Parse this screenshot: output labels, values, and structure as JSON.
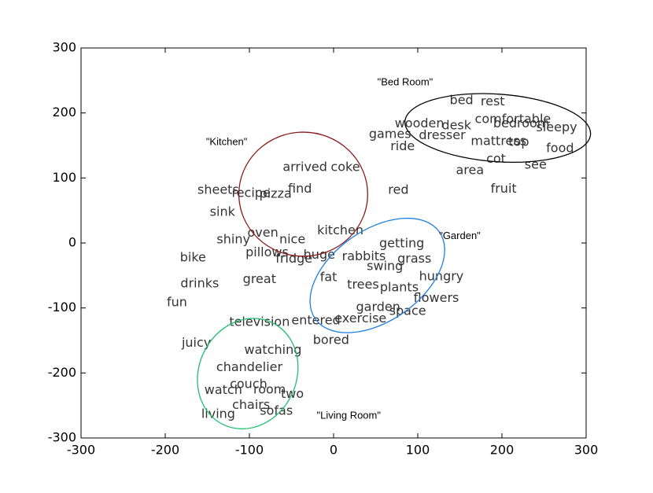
{
  "chart_data": {
    "type": "scatter",
    "labels": [
      "bed",
      "rest",
      "comfortable",
      "bedroom",
      "sleepy",
      "wooden",
      "desk",
      "games",
      "dresser",
      "mattress",
      "top",
      "food",
      "ride",
      "cot",
      "see",
      "area",
      "fruit",
      "red",
      "arrived",
      "coke",
      "find",
      "sheets",
      "recipe",
      "pizza",
      "sink",
      "oven",
      "shiny",
      "nice",
      "kitchen",
      "getting",
      "pillows",
      "huge",
      "rabbits",
      "grass",
      "bike",
      "fridge",
      "swing",
      "hungry",
      "fat",
      "great",
      "drinks",
      "trees",
      "plants",
      "flowers",
      "fun",
      "garden",
      "space",
      "exercise",
      "entered",
      "television",
      "juicy",
      "bored",
      "watching",
      "chandelier",
      "couch",
      "watch",
      "room",
      "two",
      "chairs",
      "sofas",
      "living"
    ],
    "x": [
      152,
      189,
      213,
      223,
      265,
      102,
      146,
      67,
      129,
      196,
      220,
      269,
      82,
      193,
      240,
      162,
      202,
      77,
      -34,
      14,
      -40,
      -137,
      -98,
      -69,
      -132,
      -84,
      -119,
      -49,
      8,
      81,
      -79,
      -17,
      36,
      96,
      -167,
      -47,
      61,
      128,
      -6,
      -88,
      -159,
      35,
      78,
      122,
      -186,
      53,
      88,
      32,
      -21,
      -88,
      -163,
      -3,
      -72,
      -100,
      -101,
      -131,
      -76,
      -49,
      -98,
      -68,
      -137
    ],
    "y": [
      219,
      217,
      190,
      183,
      177,
      183,
      180,
      167,
      165,
      156,
      155,
      145,
      148,
      129,
      120,
      111,
      83,
      81,
      116,
      116,
      83,
      81,
      76,
      75,
      47,
      15,
      5,
      5,
      19,
      -1,
      -15,
      -19,
      -21,
      -25,
      -23,
      -25,
      -36,
      -52,
      -53,
      -56,
      -63,
      -65,
      -69,
      -85,
      -92,
      -99,
      -105,
      -117,
      -120,
      -122,
      -154,
      -150,
      -165,
      -192,
      -218,
      -227,
      -226,
      -233,
      -250,
      -259,
      -264
    ],
    "annotations": [
      {
        "text": "\"Bed Room\"",
        "x": 85,
        "y": 247
      },
      {
        "text": "\"Kitchen\"",
        "x": -127,
        "y": 155
      },
      {
        "text": "\"Garden\"",
        "x": 150,
        "y": 10
      },
      {
        "text": "\"Living Room\"",
        "x": 18,
        "y": -266
      }
    ],
    "ellipses": [
      {
        "x": 195,
        "y": 177,
        "width": 221,
        "height": 104,
        "angle": 4,
        "color": "#000000"
      },
      {
        "x": -36,
        "y": 75,
        "width": 153,
        "height": 191,
        "angle": 0,
        "color": "#8b1a1a"
      },
      {
        "x": 52,
        "y": -50,
        "width": 180,
        "height": 140,
        "angle": -35,
        "color": "#1f7fe0"
      },
      {
        "x": -102,
        "y": -201,
        "width": 116,
        "height": 174,
        "angle": 25,
        "color": "#1fbf6f"
      }
    ],
    "xlim": [
      -300,
      300
    ],
    "ylim": [
      -300,
      300
    ],
    "xticks": [
      -300,
      -200,
      -100,
      0,
      100,
      200,
      300
    ],
    "yticks": [
      -300,
      -200,
      -100,
      0,
      100,
      200,
      300
    ]
  }
}
